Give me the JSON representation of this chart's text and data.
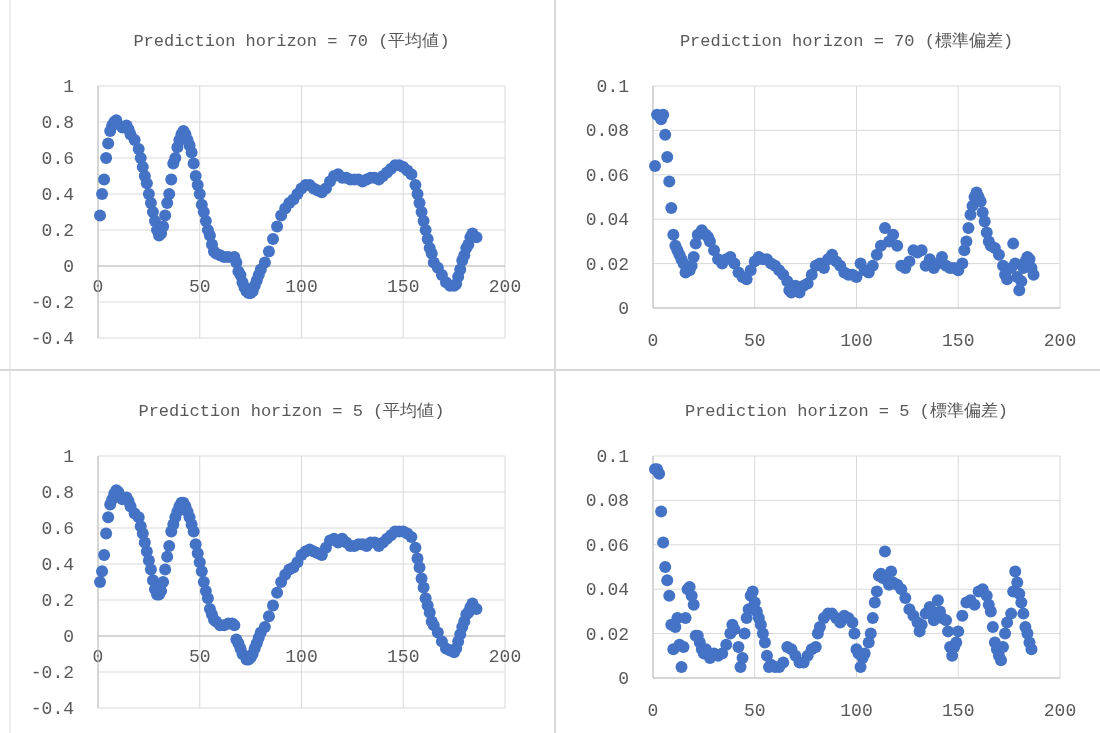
{
  "chart_data": [
    {
      "type": "scatter",
      "title": "Prediction horizon = 70 (平均値)",
      "xlim": [
        0,
        200
      ],
      "xticks": [
        0,
        50,
        100,
        150,
        200
      ],
      "ylim": [
        -0.4,
        1
      ],
      "yticks": [
        -0.4,
        -0.2,
        0,
        0.2,
        0.4,
        0.6,
        0.8,
        1
      ],
      "grid": true,
      "marker": "circle",
      "x": [
        1,
        2,
        3,
        4,
        5,
        6,
        7,
        8,
        9,
        12,
        14,
        15,
        16,
        18,
        20,
        21,
        22,
        23,
        24,
        25,
        26,
        27,
        28,
        29,
        30,
        31,
        32,
        33,
        34,
        35,
        36,
        37,
        38,
        39,
        40,
        41,
        42,
        43,
        44,
        45,
        46,
        47,
        48,
        49,
        50,
        51,
        52,
        53,
        54,
        55,
        56,
        57,
        58,
        60,
        62,
        64,
        67,
        68,
        69,
        70,
        71,
        72,
        73,
        74,
        75,
        76,
        77,
        78,
        79,
        80,
        82,
        84,
        86,
        88,
        90,
        92,
        94,
        96,
        98,
        100,
        102,
        104,
        106,
        108,
        110,
        112,
        114,
        116,
        118,
        120,
        122,
        124,
        126,
        128,
        130,
        132,
        134,
        136,
        138,
        140,
        142,
        144,
        146,
        148,
        150,
        152,
        154,
        156,
        157,
        158,
        159,
        160,
        161,
        162,
        163,
        164,
        165,
        167,
        169,
        171,
        173,
        175,
        176,
        177,
        178,
        179,
        180,
        181,
        182,
        183,
        184,
        186
      ],
      "series": [
        {
          "color": "#4472c4",
          "values": [
            0.28,
            0.4,
            0.48,
            0.6,
            0.68,
            0.75,
            0.78,
            0.8,
            0.81,
            0.77,
            0.78,
            0.76,
            0.73,
            0.7,
            0.65,
            0.6,
            0.55,
            0.5,
            0.46,
            0.4,
            0.35,
            0.3,
            0.25,
            0.2,
            0.17,
            0.18,
            0.22,
            0.28,
            0.35,
            0.4,
            0.48,
            0.57,
            0.6,
            0.66,
            0.7,
            0.73,
            0.75,
            0.73,
            0.7,
            0.67,
            0.63,
            0.57,
            0.5,
            0.45,
            0.4,
            0.34,
            0.3,
            0.25,
            0.2,
            0.17,
            0.12,
            0.08,
            0.07,
            0.06,
            0.05,
            0.05,
            0.05,
            0.02,
            -0.03,
            -0.05,
            -0.09,
            -0.12,
            -0.14,
            -0.15,
            -0.15,
            -0.14,
            -0.11,
            -0.08,
            -0.05,
            -0.02,
            0.02,
            0.08,
            0.15,
            0.22,
            0.28,
            0.32,
            0.35,
            0.37,
            0.4,
            0.43,
            0.45,
            0.45,
            0.43,
            0.42,
            0.41,
            0.43,
            0.47,
            0.5,
            0.51,
            0.49,
            0.49,
            0.48,
            0.48,
            0.48,
            0.47,
            0.48,
            0.49,
            0.49,
            0.48,
            0.5,
            0.52,
            0.54,
            0.56,
            0.56,
            0.55,
            0.53,
            0.51,
            0.45,
            0.4,
            0.35,
            0.3,
            0.25,
            0.2,
            0.15,
            0.1,
            0.07,
            0.02,
            -0.01,
            -0.05,
            -0.09,
            -0.11,
            -0.11,
            -0.1,
            -0.06,
            -0.02,
            0.03,
            0.06,
            0.1,
            0.12,
            0.16,
            0.18,
            0.16
          ]
        }
      ]
    },
    {
      "type": "scatter",
      "title": "Prediction horizon = 70 (標準偏差)",
      "xlim": [
        0,
        200
      ],
      "xticks": [
        0,
        50,
        100,
        150,
        200
      ],
      "ylim": [
        0,
        0.1
      ],
      "yticks": [
        0,
        0.02,
        0.04,
        0.06,
        0.08,
        0.1
      ],
      "grid": true,
      "marker": "circle",
      "x": [
        1,
        2,
        4,
        5,
        6,
        7,
        8,
        9,
        10,
        11,
        12,
        13,
        14,
        15,
        16,
        18,
        19,
        20,
        21,
        22,
        24,
        26,
        27,
        28,
        30,
        32,
        34,
        36,
        38,
        40,
        42,
        44,
        46,
        48,
        50,
        52,
        54,
        56,
        58,
        60,
        62,
        64,
        66,
        67,
        68,
        70,
        72,
        74,
        76,
        78,
        80,
        82,
        84,
        86,
        88,
        90,
        92,
        94,
        96,
        98,
        100,
        102,
        104,
        106,
        108,
        110,
        112,
        114,
        116,
        118,
        120,
        122,
        124,
        126,
        128,
        130,
        132,
        134,
        136,
        138,
        140,
        142,
        144,
        146,
        148,
        150,
        152,
        153,
        154,
        155,
        156,
        157,
        158,
        159,
        160,
        161,
        162,
        163,
        164,
        165,
        166,
        168,
        170,
        172,
        173,
        174,
        176,
        177,
        178,
        179,
        180,
        181,
        182,
        183,
        184,
        185,
        186,
        187
      ],
      "series": [
        {
          "color": "#4472c4",
          "values": [
            0.064,
            0.087,
            0.085,
            0.087,
            0.078,
            0.068,
            0.057,
            0.045,
            0.033,
            0.028,
            0.026,
            0.024,
            0.022,
            0.02,
            0.016,
            0.017,
            0.019,
            0.023,
            0.029,
            0.033,
            0.035,
            0.033,
            0.032,
            0.03,
            0.026,
            0.022,
            0.02,
            0.022,
            0.023,
            0.02,
            0.016,
            0.014,
            0.013,
            0.017,
            0.021,
            0.023,
            0.022,
            0.022,
            0.02,
            0.019,
            0.017,
            0.015,
            0.012,
            0.008,
            0.007,
            0.01,
            0.007,
            0.01,
            0.011,
            0.015,
            0.019,
            0.02,
            0.018,
            0.022,
            0.024,
            0.021,
            0.019,
            0.016,
            0.015,
            0.015,
            0.014,
            0.02,
            0.017,
            0.016,
            0.019,
            0.024,
            0.028,
            0.036,
            0.03,
            0.033,
            0.028,
            0.019,
            0.018,
            0.021,
            0.026,
            0.025,
            0.026,
            0.019,
            0.022,
            0.018,
            0.02,
            0.023,
            0.019,
            0.018,
            0.018,
            0.017,
            0.02,
            0.026,
            0.03,
            0.036,
            0.042,
            0.046,
            0.05,
            0.052,
            0.05,
            0.048,
            0.043,
            0.039,
            0.034,
            0.03,
            0.028,
            0.027,
            0.024,
            0.019,
            0.015,
            0.013,
            0.018,
            0.029,
            0.02,
            0.014,
            0.008,
            0.012,
            0.018,
            0.021,
            0.023,
            0.022,
            0.018,
            0.015
          ]
        }
      ]
    },
    {
      "type": "scatter",
      "title": "Prediction horizon = 5 (平均値)",
      "xlim": [
        0,
        200
      ],
      "xticks": [
        0,
        50,
        100,
        150,
        200
      ],
      "ylim": [
        -0.4,
        1
      ],
      "yticks": [
        -0.4,
        -0.2,
        0,
        0.2,
        0.4,
        0.6,
        0.8,
        1
      ],
      "grid": true,
      "marker": "circle",
      "x": [
        1,
        2,
        3,
        4,
        5,
        6,
        7,
        8,
        9,
        10,
        12,
        14,
        15,
        16,
        18,
        20,
        21,
        22,
        23,
        24,
        25,
        26,
        27,
        28,
        29,
        30,
        31,
        32,
        33,
        34,
        35,
        36,
        37,
        38,
        39,
        40,
        41,
        42,
        43,
        44,
        45,
        46,
        47,
        48,
        49,
        50,
        51,
        52,
        53,
        54,
        55,
        56,
        57,
        58,
        60,
        62,
        64,
        66,
        67,
        68,
        69,
        70,
        71,
        73,
        74,
        75,
        76,
        77,
        78,
        79,
        80,
        82,
        84,
        86,
        88,
        90,
        92,
        94,
        96,
        98,
        100,
        102,
        104,
        106,
        108,
        110,
        112,
        114,
        116,
        118,
        120,
        122,
        124,
        126,
        128,
        130,
        132,
        134,
        136,
        138,
        140,
        142,
        144,
        146,
        148,
        150,
        152,
        154,
        156,
        157,
        158,
        159,
        160,
        161,
        162,
        163,
        164,
        165,
        167,
        169,
        171,
        173,
        175,
        176,
        177,
        178,
        179,
        180,
        181,
        182,
        183,
        184,
        186
      ],
      "series": [
        {
          "color": "#4472c4",
          "values": [
            0.3,
            0.36,
            0.45,
            0.57,
            0.66,
            0.73,
            0.76,
            0.79,
            0.81,
            0.8,
            0.76,
            0.77,
            0.75,
            0.72,
            0.68,
            0.66,
            0.61,
            0.57,
            0.52,
            0.47,
            0.42,
            0.37,
            0.31,
            0.26,
            0.23,
            0.23,
            0.25,
            0.3,
            0.37,
            0.44,
            0.5,
            0.58,
            0.62,
            0.66,
            0.69,
            0.72,
            0.74,
            0.74,
            0.72,
            0.69,
            0.66,
            0.62,
            0.58,
            0.51,
            0.46,
            0.41,
            0.36,
            0.3,
            0.25,
            0.21,
            0.15,
            0.12,
            0.09,
            0.08,
            0.06,
            0.06,
            0.07,
            0.07,
            0.06,
            -0.02,
            -0.04,
            -0.07,
            -0.1,
            -0.13,
            -0.13,
            -0.12,
            -0.1,
            -0.07,
            -0.04,
            -0.01,
            0.02,
            0.05,
            0.11,
            0.17,
            0.24,
            0.3,
            0.34,
            0.37,
            0.38,
            0.41,
            0.45,
            0.47,
            0.48,
            0.47,
            0.46,
            0.45,
            0.49,
            0.53,
            0.54,
            0.52,
            0.54,
            0.52,
            0.5,
            0.5,
            0.51,
            0.51,
            0.5,
            0.52,
            0.52,
            0.5,
            0.52,
            0.54,
            0.56,
            0.58,
            0.58,
            0.58,
            0.57,
            0.55,
            0.49,
            0.43,
            0.38,
            0.32,
            0.27,
            0.21,
            0.17,
            0.13,
            0.08,
            0.06,
            0.02,
            -0.03,
            -0.07,
            -0.08,
            -0.09,
            -0.07,
            -0.03,
            0.01,
            0.05,
            0.08,
            0.12,
            0.13,
            0.16,
            0.18,
            0.15
          ]
        }
      ]
    },
    {
      "type": "scatter",
      "title": "Prediction horizon = 5  (標準偏差)",
      "xlim": [
        0,
        200
      ],
      "xticks": [
        0,
        50,
        100,
        150,
        200
      ],
      "ylim": [
        0,
        0.1
      ],
      "yticks": [
        0,
        0.02,
        0.04,
        0.06,
        0.08,
        0.1
      ],
      "grid": true,
      "marker": "circle",
      "x": [
        1,
        2,
        3,
        4,
        5,
        6,
        7,
        8,
        9,
        10,
        11,
        12,
        13,
        14,
        15,
        16,
        17,
        18,
        19,
        20,
        21,
        22,
        23,
        24,
        25,
        26,
        28,
        30,
        32,
        34,
        36,
        38,
        39,
        40,
        42,
        43,
        44,
        45,
        46,
        47,
        48,
        49,
        50,
        51,
        52,
        53,
        54,
        55,
        56,
        57,
        58,
        60,
        62,
        64,
        66,
        68,
        70,
        72,
        74,
        76,
        78,
        80,
        81,
        82,
        84,
        86,
        88,
        90,
        92,
        94,
        96,
        98,
        99,
        100,
        101,
        102,
        103,
        104,
        106,
        107,
        108,
        109,
        110,
        111,
        112,
        113,
        114,
        115,
        116,
        117,
        118,
        120,
        122,
        124,
        126,
        128,
        130,
        131,
        132,
        134,
        136,
        137,
        138,
        140,
        141,
        142,
        144,
        145,
        146,
        147,
        148,
        149,
        150,
        152,
        154,
        156,
        158,
        160,
        162,
        164,
        165,
        166,
        167,
        168,
        169,
        170,
        171,
        172,
        173,
        174,
        176,
        177,
        178,
        179,
        180,
        181,
        182,
        183,
        184,
        185,
        186
      ],
      "series": [
        {
          "color": "#4472c4",
          "values": [
            0.094,
            0.094,
            0.092,
            0.075,
            0.061,
            0.05,
            0.044,
            0.037,
            0.024,
            0.013,
            0.023,
            0.027,
            0.015,
            0.005,
            0.014,
            0.027,
            0.04,
            0.041,
            0.037,
            0.033,
            0.019,
            0.019,
            0.016,
            0.013,
            0.011,
            0.013,
            0.009,
            0.011,
            0.01,
            0.011,
            0.015,
            0.02,
            0.024,
            0.022,
            0.014,
            0.005,
            0.009,
            0.02,
            0.027,
            0.031,
            0.037,
            0.039,
            0.034,
            0.03,
            0.027,
            0.024,
            0.02,
            0.016,
            0.01,
            0.005,
            0.006,
            0.005,
            0.005,
            0.007,
            0.014,
            0.013,
            0.01,
            0.007,
            0.007,
            0.01,
            0.013,
            0.014,
            0.02,
            0.023,
            0.027,
            0.029,
            0.029,
            0.027,
            0.025,
            0.028,
            0.027,
            0.025,
            0.02,
            0.013,
            0.011,
            0.005,
            0.009,
            0.011,
            0.016,
            0.02,
            0.027,
            0.034,
            0.039,
            0.046,
            0.047,
            0.045,
            0.057,
            0.044,
            0.042,
            0.048,
            0.043,
            0.042,
            0.04,
            0.036,
            0.031,
            0.028,
            0.025,
            0.021,
            0.024,
            0.029,
            0.032,
            0.03,
            0.026,
            0.035,
            0.03,
            0.027,
            0.026,
            0.021,
            0.014,
            0.01,
            0.014,
            0.016,
            0.021,
            0.028,
            0.034,
            0.035,
            0.033,
            0.039,
            0.04,
            0.037,
            0.033,
            0.03,
            0.023,
            0.016,
            0.013,
            0.01,
            0.008,
            0.014,
            0.02,
            0.025,
            0.029,
            0.039,
            0.048,
            0.043,
            0.038,
            0.034,
            0.029,
            0.023,
            0.02,
            0.016,
            0.013
          ]
        }
      ]
    }
  ]
}
